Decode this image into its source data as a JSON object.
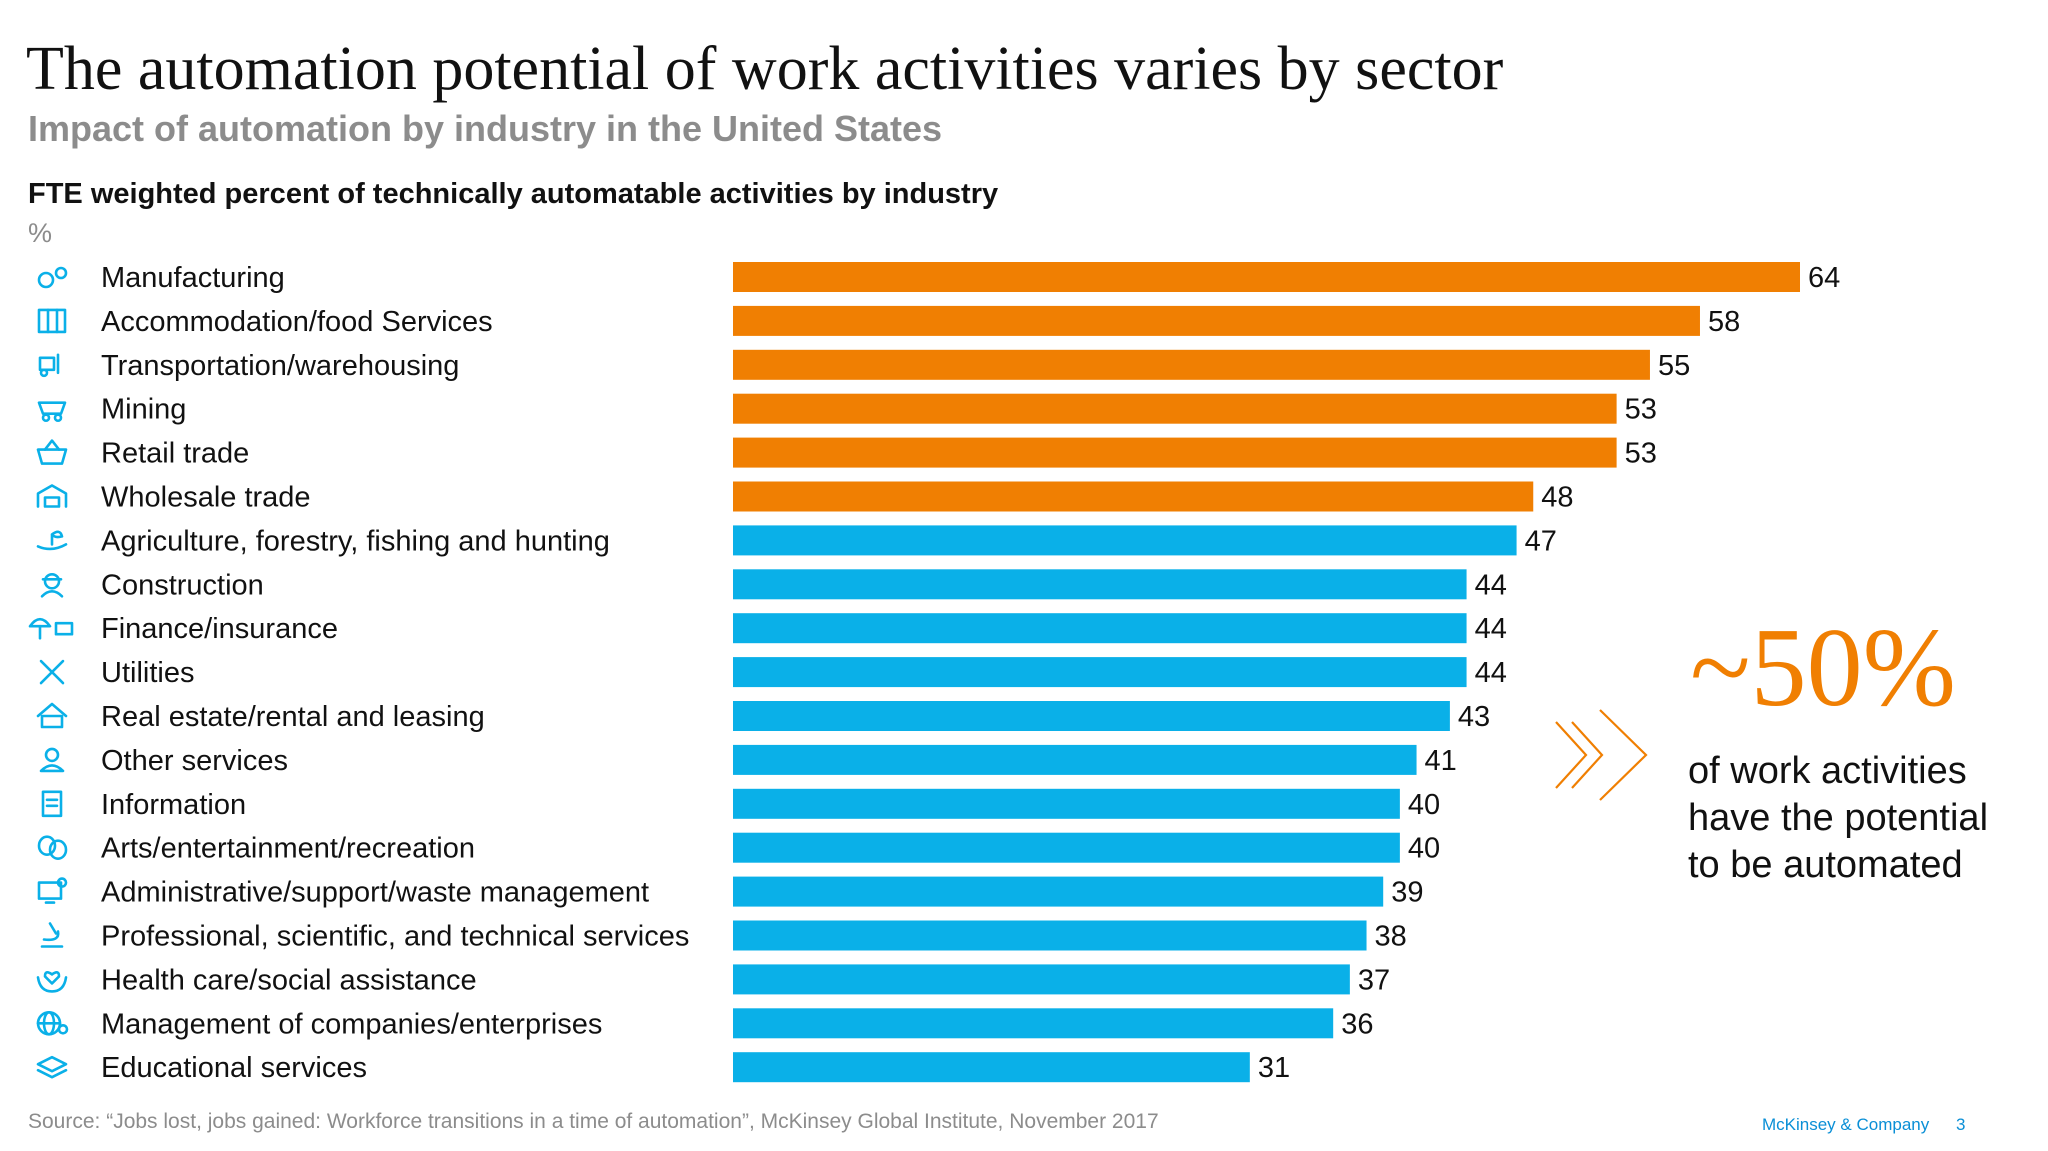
{
  "header": {
    "title": "The automation potential of work activities varies by sector",
    "subtitle": "Impact of automation by industry in the United States"
  },
  "chart_data": {
    "type": "bar",
    "orientation": "horizontal",
    "title": "FTE weighted percent of technically automatable activities by industry",
    "unit": "%",
    "categories": [
      "Manufacturing",
      "Accommodation/food Services",
      "Transportation/warehousing",
      "Mining",
      "Retail trade",
      "Wholesale trade",
      "Agriculture, forestry, fishing and hunting",
      "Construction",
      "Finance/insurance",
      "Utilities",
      "Real estate/rental and leasing",
      "Other services",
      "Information",
      "Arts/entertainment/recreation",
      "Administrative/support/waste management",
      "Professional, scientific, and technical services",
      "Health care/social assistance",
      "Management of companies/enterprises",
      "Educational services"
    ],
    "values": [
      64,
      58,
      55,
      53,
      53,
      48,
      47,
      44,
      44,
      44,
      43,
      41,
      40,
      40,
      39,
      38,
      37,
      36,
      31
    ],
    "highlight_threshold": 48,
    "colors": {
      "highlight": "#f07f02",
      "default": "#0ab0e8"
    },
    "icons": [
      "gears-icon",
      "building-icon",
      "forklift-icon",
      "mine-cart-icon",
      "basket-icon",
      "warehouse-icon",
      "plant-hand-icon",
      "worker-icon",
      "umbrella-money-icon",
      "tools-icon",
      "house-icon",
      "person-icon",
      "document-icon",
      "theater-masks-icon",
      "computer-gear-icon",
      "microscope-icon",
      "heart-hands-icon",
      "globe-people-icon",
      "books-icon"
    ],
    "xlim": [
      0,
      64
    ],
    "grid": false,
    "legend": "none"
  },
  "callout": {
    "value": "~50%",
    "line1": "of work activities",
    "line2": "have the potential",
    "line3": "to be automated",
    "color": "#f07f02"
  },
  "footer": {
    "source": "Source: “Jobs lost, jobs gained: Workforce transitions in a time of automation”, McKinsey Global Institute, November 2017",
    "brand": "McKinsey & Company",
    "page": "3"
  }
}
